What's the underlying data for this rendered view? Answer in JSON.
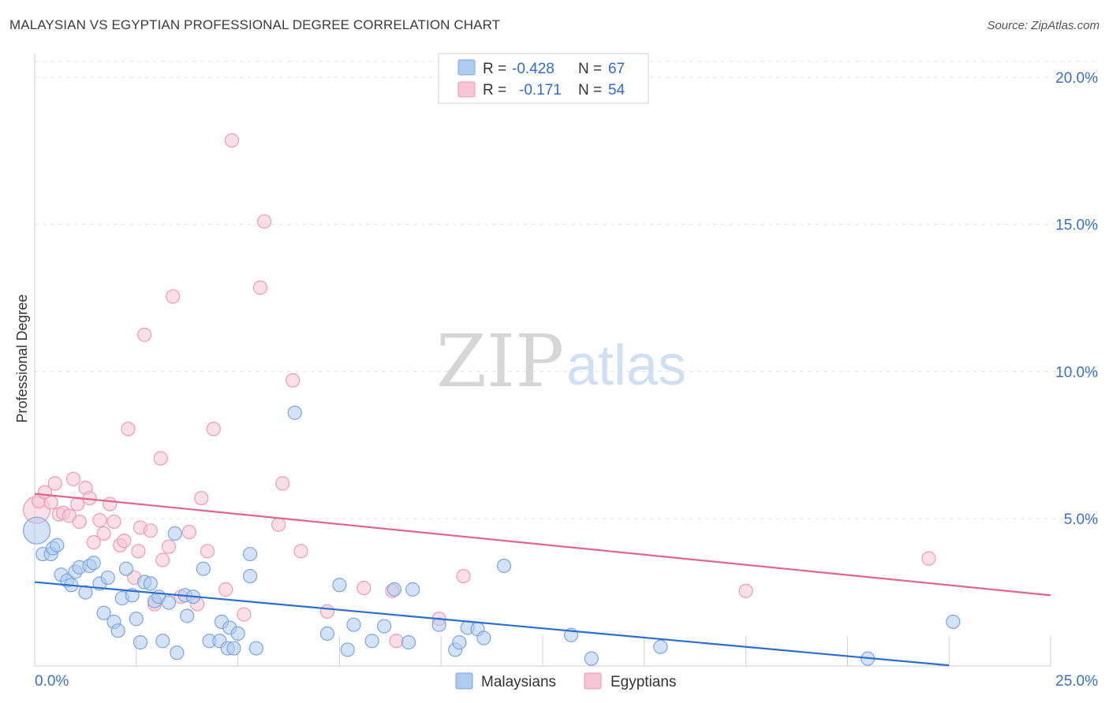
{
  "title": "MALAYSIAN VS EGYPTIAN PROFESSIONAL DEGREE CORRELATION CHART",
  "source": "Source: ZipAtlas.com",
  "watermark": {
    "zip": "ZIP",
    "atlas": "atlas"
  },
  "colors": {
    "malaysian_fill": "#aecbf0",
    "malaysian_stroke": "#7aa6e0",
    "malaysian_line": "#2a6fcf",
    "egyptian_fill": "#f6c4d3",
    "egyptian_stroke": "#ee9ab4",
    "egyptian_line": "#e0648e",
    "tick_label": "#3a6fc4",
    "grid": "#e3e3e3"
  },
  "legend": {
    "rows": [
      {
        "r_label": "R =",
        "r_value": "-0.428",
        "n_label": "N =",
        "n_value": "67",
        "series": "malaysians"
      },
      {
        "r_label": "R =",
        "r_value": "-0.171",
        "n_label": "N =",
        "n_value": "54",
        "series": "egyptians"
      }
    ]
  },
  "bottom_legend": [
    "Malaysians",
    "Egyptians"
  ],
  "chart_data": {
    "type": "scatter",
    "title": "MALAYSIAN VS EGYPTIAN PROFESSIONAL DEGREE CORRELATION CHART",
    "xlabel": "",
    "ylabel": "Professional Degree",
    "xlim": [
      0,
      25
    ],
    "ylim": [
      0,
      20.8
    ],
    "x_tick_labels": [
      {
        "value": 0,
        "label": "0.0%"
      },
      {
        "value": 25,
        "label": "25.0%"
      }
    ],
    "y_tick_labels": [
      {
        "value": 5,
        "label": "5.0%"
      },
      {
        "value": 10,
        "label": "10.0%"
      },
      {
        "value": 15,
        "label": "15.0%"
      },
      {
        "value": 20,
        "label": "20.0%"
      }
    ],
    "series": [
      {
        "name": "Malaysians",
        "trend": {
          "x": [
            0,
            22.5
          ],
          "y": [
            2.85,
            0.02
          ]
        },
        "points": [
          {
            "x": 0.05,
            "y": 4.6,
            "size": "large"
          },
          {
            "x": 0.2,
            "y": 3.8
          },
          {
            "x": 0.4,
            "y": 3.8
          },
          {
            "x": 0.45,
            "y": 4.0
          },
          {
            "x": 0.55,
            "y": 4.1
          },
          {
            "x": 0.65,
            "y": 3.1
          },
          {
            "x": 0.8,
            "y": 2.9
          },
          {
            "x": 0.9,
            "y": 2.75
          },
          {
            "x": 1.0,
            "y": 3.2
          },
          {
            "x": 1.1,
            "y": 3.35
          },
          {
            "x": 1.25,
            "y": 2.5
          },
          {
            "x": 1.35,
            "y": 3.4
          },
          {
            "x": 1.45,
            "y": 3.5
          },
          {
            "x": 1.6,
            "y": 2.8
          },
          {
            "x": 1.7,
            "y": 1.8
          },
          {
            "x": 1.8,
            "y": 3.0
          },
          {
            "x": 1.95,
            "y": 1.5
          },
          {
            "x": 2.05,
            "y": 1.2
          },
          {
            "x": 2.15,
            "y": 2.3
          },
          {
            "x": 2.25,
            "y": 3.3
          },
          {
            "x": 2.4,
            "y": 2.4
          },
          {
            "x": 2.5,
            "y": 1.6
          },
          {
            "x": 2.6,
            "y": 0.8
          },
          {
            "x": 2.7,
            "y": 2.85
          },
          {
            "x": 2.85,
            "y": 2.8
          },
          {
            "x": 2.95,
            "y": 2.2
          },
          {
            "x": 3.05,
            "y": 2.35
          },
          {
            "x": 3.15,
            "y": 0.85
          },
          {
            "x": 3.3,
            "y": 2.15
          },
          {
            "x": 3.45,
            "y": 4.5
          },
          {
            "x": 3.5,
            "y": 0.45
          },
          {
            "x": 3.7,
            "y": 2.4
          },
          {
            "x": 3.75,
            "y": 1.7
          },
          {
            "x": 3.9,
            "y": 2.35
          },
          {
            "x": 4.15,
            "y": 3.3
          },
          {
            "x": 4.3,
            "y": 0.85
          },
          {
            "x": 4.55,
            "y": 0.85
          },
          {
            "x": 4.6,
            "y": 1.5
          },
          {
            "x": 4.75,
            "y": 0.6
          },
          {
            "x": 4.8,
            "y": 1.3
          },
          {
            "x": 4.9,
            "y": 0.6
          },
          {
            "x": 5.0,
            "y": 1.1
          },
          {
            "x": 5.3,
            "y": 3.05
          },
          {
            "x": 5.45,
            "y": 0.6
          },
          {
            "x": 5.3,
            "y": 3.8
          },
          {
            "x": 6.4,
            "y": 8.6
          },
          {
            "x": 7.2,
            "y": 1.1
          },
          {
            "x": 7.5,
            "y": 2.75
          },
          {
            "x": 7.7,
            "y": 0.55
          },
          {
            "x": 7.85,
            "y": 1.4
          },
          {
            "x": 8.3,
            "y": 0.85
          },
          {
            "x": 8.6,
            "y": 1.35
          },
          {
            "x": 8.85,
            "y": 2.6
          },
          {
            "x": 9.2,
            "y": 0.8
          },
          {
            "x": 9.3,
            "y": 2.6
          },
          {
            "x": 9.95,
            "y": 1.4
          },
          {
            "x": 10.35,
            "y": 0.55
          },
          {
            "x": 10.45,
            "y": 0.8
          },
          {
            "x": 10.65,
            "y": 1.3
          },
          {
            "x": 10.9,
            "y": 1.25
          },
          {
            "x": 11.05,
            "y": 0.95
          },
          {
            "x": 11.55,
            "y": 3.4
          },
          {
            "x": 13.2,
            "y": 1.05
          },
          {
            "x": 13.7,
            "y": 0.25
          },
          {
            "x": 15.4,
            "y": 0.65
          },
          {
            "x": 20.5,
            "y": 0.25
          },
          {
            "x": 22.6,
            "y": 1.5
          }
        ]
      },
      {
        "name": "Egyptians",
        "trend": {
          "x": [
            0,
            25
          ],
          "y": [
            5.85,
            2.4
          ]
        },
        "points": [
          {
            "x": 0.05,
            "y": 5.3,
            "size": "large"
          },
          {
            "x": 0.1,
            "y": 5.6
          },
          {
            "x": 0.25,
            "y": 5.9
          },
          {
            "x": 0.4,
            "y": 5.55
          },
          {
            "x": 0.5,
            "y": 6.2
          },
          {
            "x": 0.6,
            "y": 5.15
          },
          {
            "x": 0.7,
            "y": 5.2
          },
          {
            "x": 0.85,
            "y": 5.1
          },
          {
            "x": 0.95,
            "y": 6.35
          },
          {
            "x": 1.05,
            "y": 5.5
          },
          {
            "x": 1.1,
            "y": 4.9
          },
          {
            "x": 1.25,
            "y": 6.05
          },
          {
            "x": 1.35,
            "y": 5.7
          },
          {
            "x": 1.45,
            "y": 4.2
          },
          {
            "x": 1.6,
            "y": 4.95
          },
          {
            "x": 1.7,
            "y": 4.5
          },
          {
            "x": 1.85,
            "y": 5.5
          },
          {
            "x": 1.95,
            "y": 4.9
          },
          {
            "x": 2.1,
            "y": 4.1
          },
          {
            "x": 2.2,
            "y": 4.25
          },
          {
            "x": 2.3,
            "y": 8.05
          },
          {
            "x": 2.45,
            "y": 3.0
          },
          {
            "x": 2.55,
            "y": 3.9
          },
          {
            "x": 2.6,
            "y": 4.7
          },
          {
            "x": 2.7,
            "y": 11.25
          },
          {
            "x": 2.85,
            "y": 4.6
          },
          {
            "x": 2.95,
            "y": 2.1
          },
          {
            "x": 3.1,
            "y": 7.05
          },
          {
            "x": 3.15,
            "y": 3.6
          },
          {
            "x": 3.3,
            "y": 4.05
          },
          {
            "x": 3.4,
            "y": 12.55
          },
          {
            "x": 3.6,
            "y": 2.35
          },
          {
            "x": 3.8,
            "y": 4.55
          },
          {
            "x": 4.0,
            "y": 2.1
          },
          {
            "x": 4.1,
            "y": 5.7
          },
          {
            "x": 4.25,
            "y": 3.9
          },
          {
            "x": 4.4,
            "y": 8.05
          },
          {
            "x": 4.7,
            "y": 2.6
          },
          {
            "x": 4.85,
            "y": 17.85
          },
          {
            "x": 5.15,
            "y": 1.75
          },
          {
            "x": 5.55,
            "y": 12.85
          },
          {
            "x": 5.65,
            "y": 15.1
          },
          {
            "x": 6.0,
            "y": 4.8
          },
          {
            "x": 6.1,
            "y": 6.2
          },
          {
            "x": 6.35,
            "y": 9.7
          },
          {
            "x": 6.55,
            "y": 3.9
          },
          {
            "x": 7.2,
            "y": 1.85
          },
          {
            "x": 8.1,
            "y": 2.65
          },
          {
            "x": 8.8,
            "y": 2.55
          },
          {
            "x": 8.9,
            "y": 0.85
          },
          {
            "x": 9.95,
            "y": 1.6
          },
          {
            "x": 10.55,
            "y": 3.05
          },
          {
            "x": 17.5,
            "y": 2.55
          },
          {
            "x": 22.0,
            "y": 3.65
          }
        ]
      }
    ]
  }
}
